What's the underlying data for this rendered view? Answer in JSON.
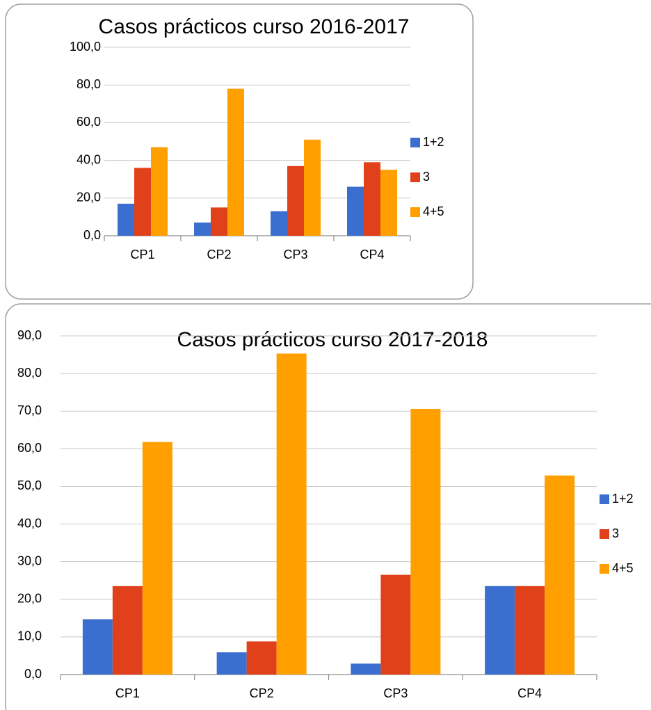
{
  "chart_data": [
    {
      "type": "bar",
      "title": "Casos prácticos curso 2016-2017",
      "categories": [
        "CP1",
        "CP2",
        "CP3",
        "CP4"
      ],
      "series": [
        {
          "name": "1+2",
          "color": "#3a6fd0",
          "values": [
            17,
            7,
            13,
            26
          ]
        },
        {
          "name": "3",
          "color": "#e0411a",
          "values": [
            36,
            15,
            37,
            39
          ]
        },
        {
          "name": "4+5",
          "color": "#ff9f00",
          "values": [
            47,
            78,
            51,
            35
          ]
        }
      ],
      "ylim": [
        0,
        100
      ],
      "yticks": [
        {
          "value": 0,
          "label": "0,0"
        },
        {
          "value": 20,
          "label": "20,0"
        },
        {
          "value": 40,
          "label": "40,0"
        },
        {
          "value": 60,
          "label": "60,0"
        },
        {
          "value": 80,
          "label": "80,0"
        },
        {
          "value": 100,
          "label": "100,0"
        }
      ],
      "grid": true,
      "legend": "right"
    },
    {
      "type": "bar",
      "title": "Casos prácticos curso 2017-2018",
      "categories": [
        "CP1",
        "CP2",
        "CP3",
        "CP4"
      ],
      "series": [
        {
          "name": "1+2",
          "color": "#3a6fd0",
          "values": [
            14.7,
            5.9,
            2.9,
            23.5
          ]
        },
        {
          "name": "3",
          "color": "#e0411a",
          "values": [
            23.5,
            8.8,
            26.5,
            23.5
          ]
        },
        {
          "name": "4+5",
          "color": "#ff9f00",
          "values": [
            61.8,
            85.3,
            70.6,
            52.9
          ]
        }
      ],
      "ylim": [
        0,
        90
      ],
      "yticks": [
        {
          "value": 0,
          "label": "0,0"
        },
        {
          "value": 10,
          "label": "10,0"
        },
        {
          "value": 20,
          "label": "20,0"
        },
        {
          "value": 30,
          "label": "30,0"
        },
        {
          "value": 40,
          "label": "40,0"
        },
        {
          "value": 50,
          "label": "50,0"
        },
        {
          "value": 60,
          "label": "60,0"
        },
        {
          "value": 70,
          "label": "70,0"
        },
        {
          "value": 80,
          "label": "80,0"
        },
        {
          "value": 90,
          "label": "90,0"
        }
      ],
      "grid": true,
      "legend": "right"
    }
  ]
}
